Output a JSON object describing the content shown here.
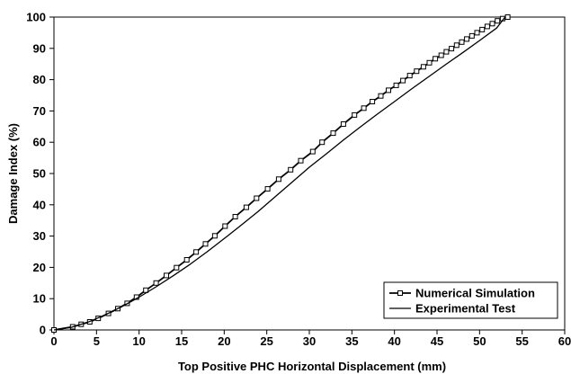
{
  "chart_data": {
    "type": "line",
    "title": "",
    "xlabel": "Top Positive PHC Horizontal Displacement (mm)",
    "ylabel": "Damage Index (%)",
    "xlim": [
      0,
      60
    ],
    "ylim": [
      0,
      100
    ],
    "xticks": [
      "0",
      "5",
      "10",
      "15",
      "20",
      "25",
      "30",
      "35",
      "40",
      "45",
      "50",
      "55",
      "60"
    ],
    "yticks": [
      "0",
      "10",
      "20",
      "30",
      "40",
      "50",
      "60",
      "70",
      "80",
      "90",
      "100"
    ],
    "grid": false,
    "legend": {
      "position": "bottom-right"
    },
    "series": [
      {
        "name": "Numerical Simulation",
        "marker": "square",
        "color": "#000000",
        "x": [
          0,
          2.2,
          3.2,
          4.2,
          5.2,
          6.4,
          7.5,
          8.6,
          9.7,
          10.8,
          12.0,
          13.2,
          14.4,
          15.6,
          16.7,
          17.8,
          18.9,
          20.1,
          21.3,
          22.6,
          23.8,
          25.1,
          26.4,
          27.8,
          29.0,
          30.4,
          31.5,
          32.8,
          34.0,
          35.3,
          36.4,
          37.4,
          38.4,
          39.3,
          40.2,
          41.0,
          41.8,
          42.6,
          43.4,
          44.1,
          44.8,
          45.5,
          46.1,
          46.7,
          47.3,
          47.9,
          48.5,
          49.1,
          49.7,
          50.3,
          50.9,
          51.5,
          52.1,
          52.7,
          53.3
        ],
        "y": [
          0,
          1.0,
          1.8,
          2.6,
          3.7,
          5.3,
          6.8,
          8.5,
          10.5,
          12.7,
          15.0,
          17.4,
          19.9,
          22.4,
          24.9,
          27.5,
          30.1,
          33.2,
          36.2,
          39.2,
          42.1,
          45.1,
          48.2,
          51.2,
          54.1,
          57.0,
          60.0,
          62.9,
          65.8,
          68.7,
          70.9,
          73.0,
          74.8,
          76.6,
          78.2,
          79.7,
          81.3,
          82.7,
          84.1,
          85.4,
          86.7,
          87.8,
          88.9,
          89.9,
          91.0,
          92.0,
          93.0,
          94.0,
          95.0,
          96.0,
          97.0,
          97.9,
          98.8,
          99.5,
          100
        ]
      },
      {
        "name": "Experimental Test",
        "marker": "none",
        "color": "#000000",
        "x": [
          0,
          2,
          4,
          6,
          8,
          10,
          12,
          14,
          16,
          18,
          20,
          22,
          24,
          26,
          28,
          30,
          32,
          34,
          36,
          38,
          40,
          42,
          44,
          46,
          48,
          50,
          52,
          53
        ],
        "y": [
          0,
          0.8,
          2.5,
          4.8,
          7.5,
          10.5,
          13.8,
          17.3,
          21.0,
          25.0,
          29.2,
          33.5,
          37.9,
          42.6,
          47.3,
          52.0,
          56.3,
          60.7,
          64.9,
          69.0,
          73.0,
          77.0,
          80.9,
          84.8,
          88.6,
          92.5,
          96.5,
          100
        ]
      }
    ]
  }
}
